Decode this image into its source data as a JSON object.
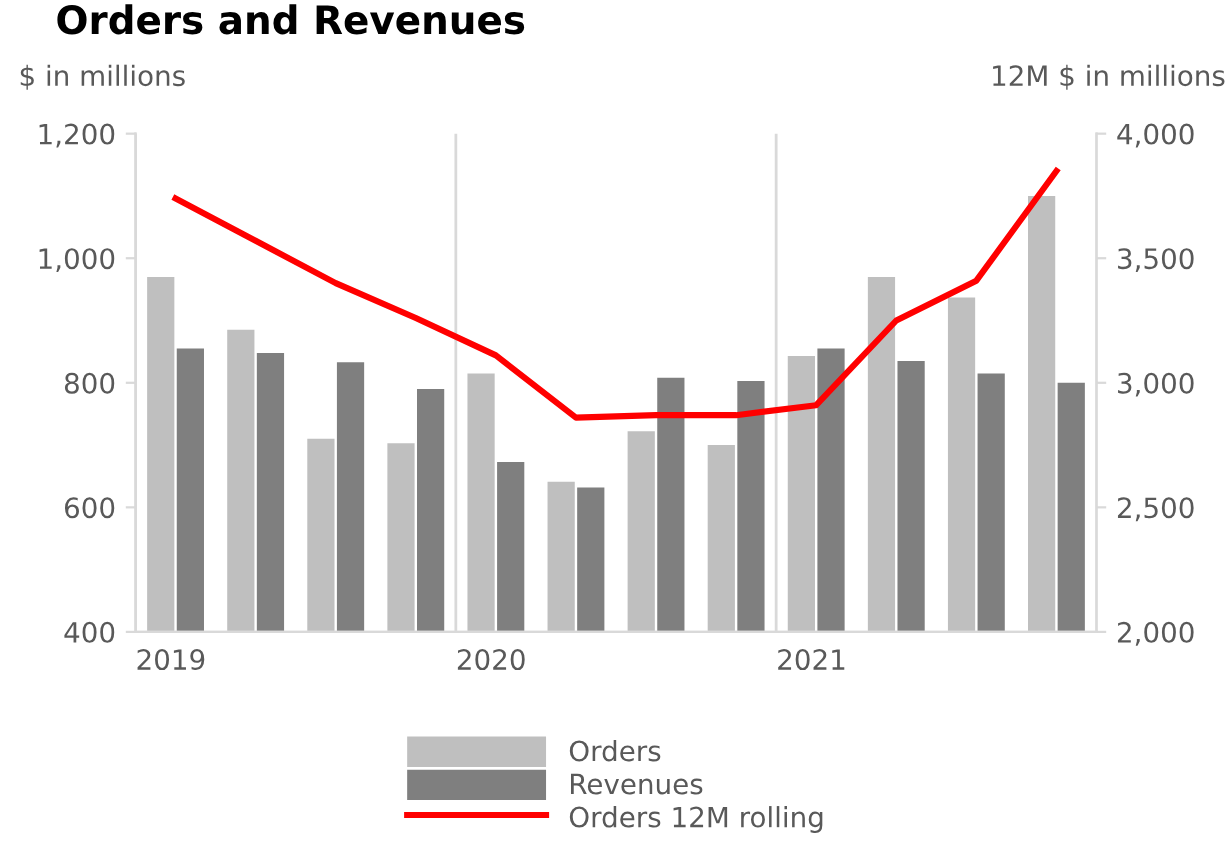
{
  "chart_data": {
    "type": "bar",
    "title": "Orders and Revenues",
    "ylabel": "$ in millions",
    "y2label": "12M $ in millions",
    "categories": [
      "2019",
      null,
      null,
      null,
      "2020",
      null,
      null,
      null,
      "2021",
      null,
      null,
      null
    ],
    "series": [
      {
        "name": "Orders",
        "color": "#bfbfbf",
        "values": [
          970,
          885,
          710,
          703,
          815,
          641,
          722,
          700,
          843,
          970,
          937,
          1100
        ]
      },
      {
        "name": "Revenues",
        "color": "#7f7f7f",
        "values": [
          855,
          848,
          833,
          790,
          673,
          632,
          808,
          803,
          855,
          835,
          815,
          800
        ]
      },
      {
        "name": "Orders 12M rolling",
        "type": "line",
        "axis": "y2",
        "color": "#ff0000",
        "values": [
          3740,
          3570,
          3400,
          3260,
          3110,
          2860,
          2870,
          2870,
          2910,
          3250,
          3410,
          3850
        ]
      }
    ],
    "ylim": [
      400,
      1200
    ],
    "yticks": [
      {
        "value": 400,
        "label": "400"
      },
      {
        "value": 600,
        "label": "600"
      },
      {
        "value": 800,
        "label": "800"
      },
      {
        "value": 1000,
        "label": "1,000"
      },
      {
        "value": 1200,
        "label": "1,200"
      }
    ],
    "y2lim": [
      2000,
      4000
    ],
    "y2ticks": [
      {
        "value": 2000,
        "label": "2,000"
      },
      {
        "value": 2500,
        "label": "2,500"
      },
      {
        "value": 3000,
        "label": "3,000"
      },
      {
        "value": 3500,
        "label": "3,500"
      },
      {
        "value": 4000,
        "label": "4,000"
      }
    ],
    "grid": "x",
    "legend": "bottom"
  }
}
